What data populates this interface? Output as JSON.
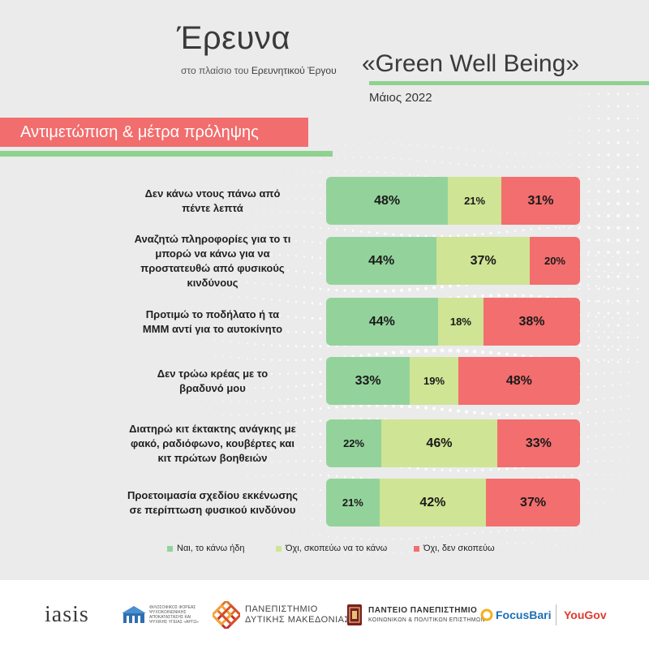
{
  "header": {
    "title": "Έρευνα",
    "subtitle_prefix": "στο πλαίσιο του",
    "subtitle_bold": "Ερευνητικού Έργου",
    "project": "«Green Well Being»",
    "date": "Μάιος 2022"
  },
  "banner": {
    "text": "Αντιμετώπιση & μέτρα πρόληψης"
  },
  "colors": {
    "green": "#93d39b",
    "lightgreen": "#cfe494",
    "red": "#f36e6e",
    "accent_rule": "#8fd18f"
  },
  "chart_data": {
    "type": "bar",
    "orientation": "horizontal",
    "stacked": true,
    "categories": [
      "Δεν κάνω ντους πάνω από πέντε λεπτά",
      "Αναζητώ πληροφορίες για το τι μπορώ να κάνω για να προστατευθώ από φυσικούς κινδύνους",
      "Προτιμώ το ποδήλατο ή τα ΜΜΜ αντί για το αυτοκίνητο",
      "Δεν τρώω κρέας με το βραδυνό μου",
      "Διατηρώ κιτ έκτακτης ανάγκης με φακό, ραδιόφωνο, κουβέρτες και κιτ πρώτων βοηθειών",
      "Προετοιμασία σχεδίου εκκένωσης σε περίπτωση φυσικού κινδύνου"
    ],
    "series": [
      {
        "name": "Ναι, το κάνω ήδη",
        "color": "#93d39b",
        "values": [
          48,
          44,
          44,
          33,
          22,
          21
        ]
      },
      {
        "name": "Όχι, σκοπεύω να το κάνω",
        "color": "#cfe494",
        "values": [
          21,
          37,
          18,
          19,
          46,
          42
        ]
      },
      {
        "name": "Όχι, δεν σκοπεύω",
        "color": "#f36e6e",
        "values": [
          31,
          20,
          38,
          48,
          33,
          37
        ]
      }
    ],
    "value_suffix": "%",
    "legend_position": "bottom",
    "grid": false
  },
  "footer": {
    "logos": {
      "iasis": "iasis",
      "org1": "ΦΙΛΟΣΟΦΙΚΟΣ ΦΟΡΕΑΣ ΨΥΧΟΚΟΙΝΩΝΙΚΗΣ ΑΠΟΚΑΤΑΣΤΑΣΗΣ ΚΑΙ ΨΥΧΙΚΗΣ ΥΓΕΙΑΣ «ΑΡΓΩ»",
      "udm_line1": "ΠΑΝΕΠΙΣΤΗΜΙΟ",
      "udm_line2": "ΔΥΤΙΚΗΣ ΜΑΚΕΔΟΝΙΑΣ",
      "panteio_line1": "ΠΑΝΤΕΙΟ ΠΑΝΕΠΙΣΤΗΜΙΟ",
      "panteio_line2": "ΚΟΙΝΩΝΙΚΩΝ & ΠΟΛΙΤΙΚΩΝ ΕΠΙΣΤΗΜΩΝ",
      "focusbari": "FocusBari",
      "yougov": "YouGov"
    }
  }
}
